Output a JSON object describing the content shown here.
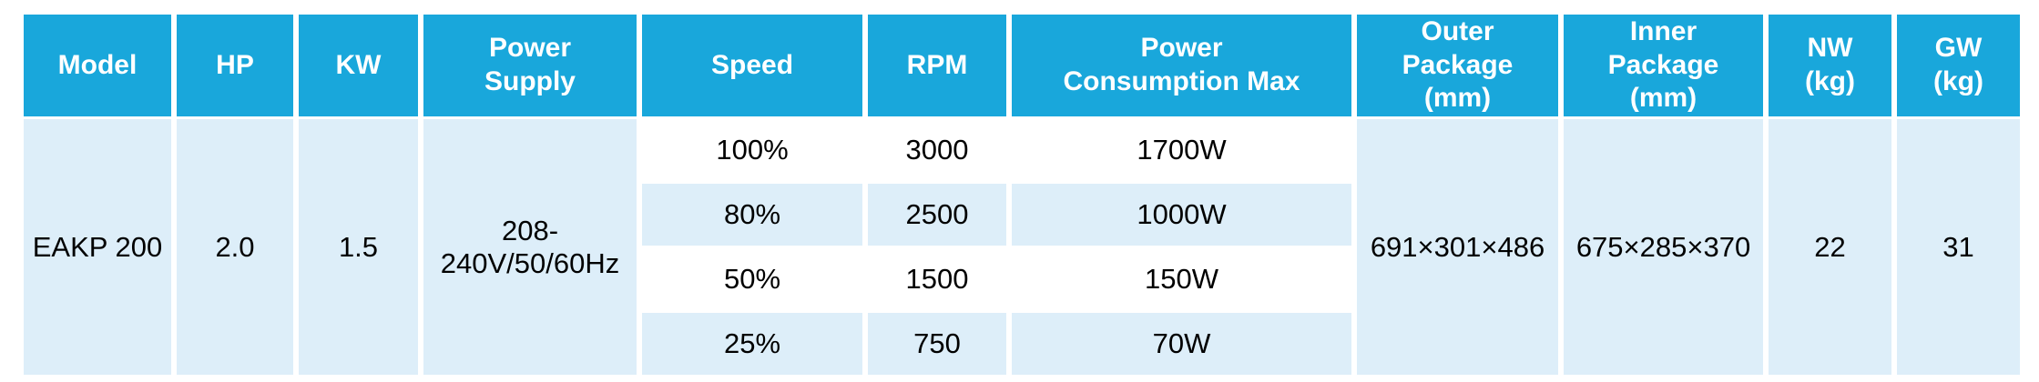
{
  "colors": {
    "header_bg": "#19A7DB",
    "cell_bg": "#DDEEF9",
    "white_bg": "#FFFFFF",
    "header_text": "#FFFFFF",
    "body_text": "#000000"
  },
  "table": {
    "columns": [
      "Model",
      "HP",
      "KW",
      "Power\nSupply",
      "Speed",
      "RPM",
      "Power\nConsumption Max",
      "Outer\nPackage\n(mm)",
      "Inner\nPackage\n(mm)",
      "NW\n(kg)",
      "GW\n(kg)"
    ],
    "row": {
      "model": "EAKP 200",
      "hp": "2.0",
      "kw": "1.5",
      "power_supply": "208-240V/50/60Hz",
      "outer_package": "691×301×486",
      "inner_package": "675×285×370",
      "nw": "22",
      "gw": "31",
      "speed_rows": [
        {
          "speed": "100%",
          "rpm": "3000",
          "power_consumption": "1700W"
        },
        {
          "speed": "80%",
          "rpm": "2500",
          "power_consumption": "1000W"
        },
        {
          "speed": "50%",
          "rpm": "1500",
          "power_consumption": "150W"
        },
        {
          "speed": "25%",
          "rpm": "750",
          "power_consumption": "70W"
        }
      ]
    }
  }
}
